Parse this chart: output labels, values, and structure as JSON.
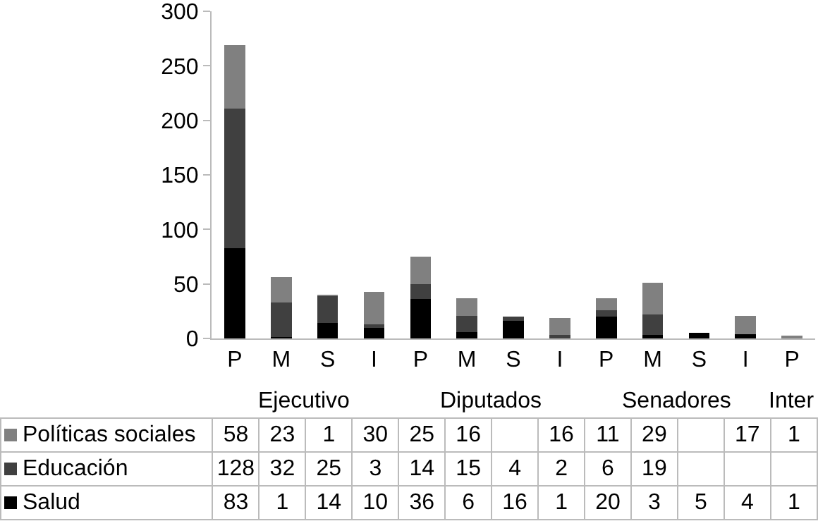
{
  "chart_data": {
    "type": "bar",
    "stacked": true,
    "categories": [
      "P",
      "M",
      "S",
      "I",
      "P",
      "M",
      "S",
      "I",
      "P",
      "M",
      "S",
      "I",
      "P"
    ],
    "series": [
      {
        "name": "Salud",
        "color": "#000000",
        "values": [
          83,
          1,
          14,
          10,
          36,
          6,
          16,
          1,
          20,
          3,
          5,
          4,
          1
        ]
      },
      {
        "name": "Educación",
        "color": "#404040",
        "values": [
          128,
          32,
          25,
          3,
          14,
          15,
          4,
          2,
          6,
          19,
          null,
          null,
          null
        ]
      },
      {
        "name": "Políticas sociales",
        "color": "#808080",
        "values": [
          58,
          23,
          1,
          30,
          25,
          16,
          null,
          16,
          11,
          29,
          null,
          17,
          1
        ]
      }
    ],
    "ylim": [
      0,
      300
    ],
    "yticks": [
      0,
      50,
      100,
      150,
      200,
      250,
      300
    ],
    "grid": false,
    "legend": "bottom",
    "data_labels": true,
    "annotations": [
      "Ejecutivo",
      "Diputados",
      "Senadores",
      "Inter"
    ]
  }
}
